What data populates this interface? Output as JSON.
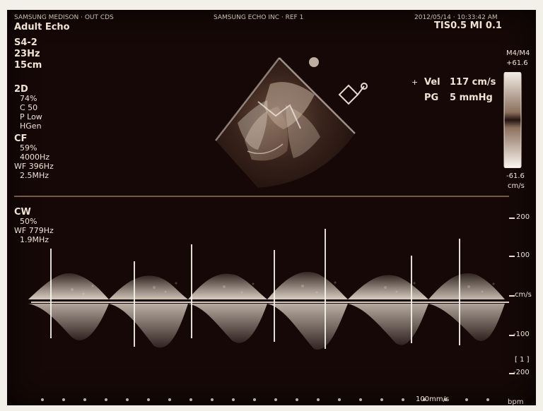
{
  "header": {
    "top_left_text": "SAMSUNG MEDISON · OUT CDS",
    "top_center_text": "SAMSUNG ECHO INC · REF 1",
    "top_right_datetime": "2012/05/14 · 10:33:42 AM",
    "tis_mi": "TIS0.5  MI 0.1"
  },
  "left_panel": {
    "mode_title": "Adult Echo",
    "probe": "S4-2",
    "frame_rate": "23Hz",
    "depth": "15cm",
    "twod_label": "2D",
    "twod_params": [
      "74%",
      "C 50",
      "P Low",
      "HGen"
    ],
    "cf_label": "CF",
    "cf_params": [
      "59%",
      "4000Hz",
      "WF 396Hz",
      "2.5MHz"
    ],
    "cw_label": "CW",
    "cw_params": [
      "50%",
      "WF 779Hz",
      "1.9MHz"
    ]
  },
  "measurements": {
    "vel_label": "Vel",
    "vel_value": "117 cm/s",
    "pg_label": "PG",
    "pg_value": "5 mmHg"
  },
  "color_scale": {
    "top_label": "M4/M4",
    "top_value": "+61.6",
    "bottom_value": "-61.6",
    "unit": "cm/s"
  },
  "spectral_axis": {
    "ticks": [
      "200",
      "100",
      "cm/s",
      "-100",
      "-200"
    ],
    "bottom_label": "[ 1 ]"
  },
  "footer": {
    "sweep": "100mm/s",
    "bpm": "bpm"
  },
  "colors": {
    "background": "#150806",
    "text": "#efe3d6",
    "accent": "#f7f0e8",
    "divider": "#8e6f57"
  },
  "icons": [
    "probe-orientation-marker-icon",
    "caliper-cursor-icon"
  ]
}
